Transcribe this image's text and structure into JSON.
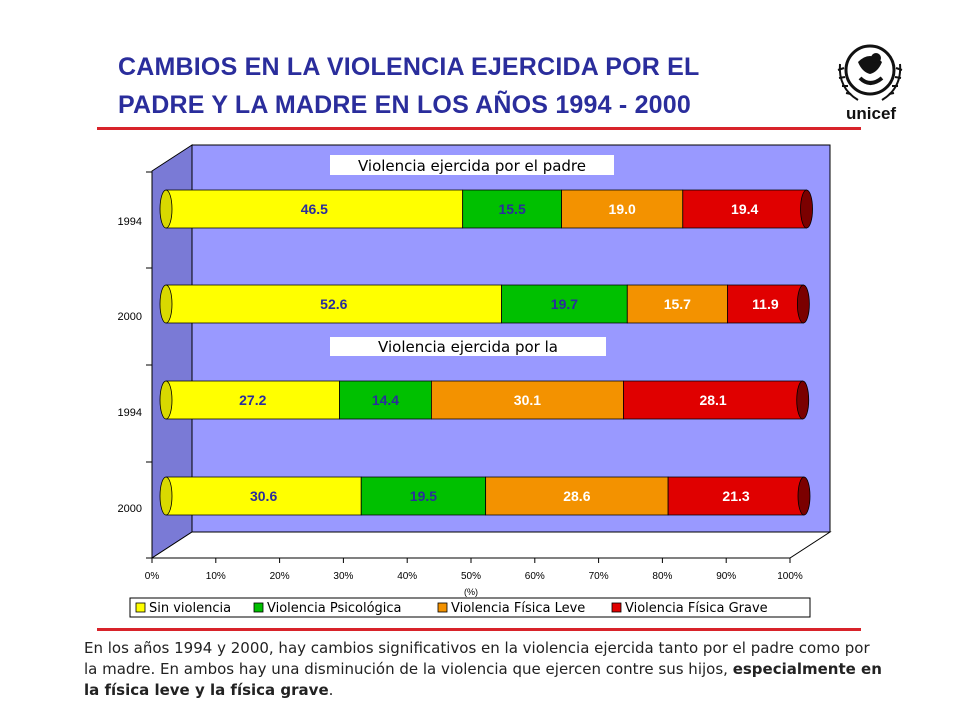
{
  "header": {
    "title_line1": "CAMBIOS EN LA VIOLENCIA EJERCIDA POR EL",
    "title_line2": "PADRE Y LA MADRE EN LOS AÑOS 1994 - 2000",
    "logo_text": "unicef"
  },
  "caption": {
    "text": "En los años 1994 y 2000, hay cambios significativos en la violencia ejercida tanto por el padre como por la madre. En ambos hay una disminución de la violencia que ejercen contre sus hijos, ",
    "bold": "especialmente en la física leve y la física grave",
    "end": "."
  },
  "chart_data": {
    "type": "bar",
    "orientation": "horizontal",
    "stacked": true,
    "categories": [
      "1994",
      "2000",
      "1994",
      "2000"
    ],
    "series": [
      {
        "name": "Sin violencia",
        "color": "#ffff00",
        "values": [
          46.5,
          52.6,
          27.2,
          30.6
        ]
      },
      {
        "name": "Violencia Psicológica",
        "color": "#00c000",
        "values": [
          15.5,
          19.7,
          14.4,
          19.5
        ]
      },
      {
        "name": "Violencia Física Leve",
        "color": "#f39200",
        "values": [
          19.0,
          15.7,
          30.1,
          28.6
        ]
      },
      {
        "name": "Violencia Física Grave",
        "color": "#e00000",
        "values": [
          19.4,
          11.9,
          28.1,
          21.3
        ]
      }
    ],
    "value_labels": [
      [
        "46.5",
        "52.6",
        "27.2",
        "30.6"
      ],
      [
        "15.5",
        "19.7",
        "14.4",
        "19.5"
      ],
      [
        "19.0",
        "15.7",
        "30.1",
        "28.6"
      ],
      [
        "19.4",
        "11.9",
        "28.1",
        "21.3"
      ]
    ],
    "annotations": [
      "Violencia ejercida por el padre",
      "Violencia ejercida por la"
    ],
    "xlabel": "(%)",
    "xlim": [
      0,
      100
    ],
    "xticks": [
      "0%",
      "10%",
      "20%",
      "30%",
      "40%",
      "50%",
      "60%",
      "70%",
      "80%",
      "90%",
      "100%"
    ],
    "legend_position": "bottom",
    "wall_color": "#9999ff",
    "label_colors": [
      "#2a2d9c",
      "#2a2d9c",
      "#ffffff",
      "#ffffff"
    ]
  }
}
